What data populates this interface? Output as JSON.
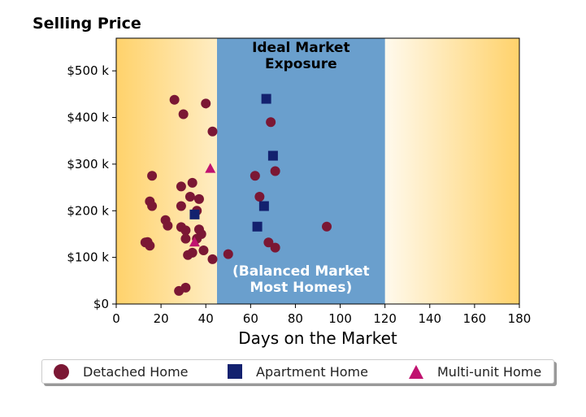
{
  "chart_data": {
    "type": "scatter",
    "title": "Selling Price",
    "xlabel": "Days on the Market",
    "ylabel": "",
    "xlim": [
      0,
      180
    ],
    "ylim": [
      0,
      570000
    ],
    "x_ticks": [
      0,
      20,
      40,
      60,
      80,
      100,
      120,
      140,
      160,
      180
    ],
    "y_ticks": [
      0,
      100000,
      200000,
      300000,
      400000,
      500000
    ],
    "y_tick_labels": [
      "$0",
      "$100 k",
      "$200 k",
      "$300 k",
      "$400 k",
      "$500 k"
    ],
    "grid": false,
    "legend_position": "bottom",
    "shaded_region": {
      "x_range": [
        45,
        120
      ],
      "color": "#6a9fcd",
      "label_top": "Ideal Market\nExposure",
      "label_bottom": "(Balanced Market\nMost Homes)"
    },
    "background_gradient": {
      "edge_color": "#ffd26b",
      "center_color": "#ffffff"
    },
    "series": [
      {
        "name": "Detached Home",
        "marker": "circle",
        "color": "#7b1734",
        "points": [
          [
            26,
            438000
          ],
          [
            30,
            407000
          ],
          [
            40,
            430000
          ],
          [
            43,
            370000
          ],
          [
            69,
            390000
          ],
          [
            16,
            275000
          ],
          [
            29,
            252000
          ],
          [
            34,
            260000
          ],
          [
            33,
            230000
          ],
          [
            37,
            225000
          ],
          [
            15,
            220000
          ],
          [
            16,
            210000
          ],
          [
            29,
            210000
          ],
          [
            36,
            200000
          ],
          [
            22,
            180000
          ],
          [
            23,
            168000
          ],
          [
            29,
            165000
          ],
          [
            31,
            158000
          ],
          [
            37,
            160000
          ],
          [
            38,
            150000
          ],
          [
            31,
            140000
          ],
          [
            36,
            140000
          ],
          [
            13,
            132000
          ],
          [
            14,
            133000
          ],
          [
            15,
            125000
          ],
          [
            39,
            115000
          ],
          [
            34,
            110000
          ],
          [
            32,
            105000
          ],
          [
            43,
            96000
          ],
          [
            50,
            107000
          ],
          [
            31,
            35000
          ],
          [
            28,
            28000
          ],
          [
            62,
            275000
          ],
          [
            71,
            285000
          ],
          [
            64,
            230000
          ],
          [
            94,
            166000
          ],
          [
            68,
            132000
          ],
          [
            71,
            121000
          ]
        ]
      },
      {
        "name": "Apartment Home",
        "marker": "square",
        "color": "#13216f",
        "points": [
          [
            67,
            440000
          ],
          [
            70,
            318000
          ],
          [
            66,
            210000
          ],
          [
            63,
            166000
          ],
          [
            35,
            192000
          ]
        ]
      },
      {
        "name": "Multi-unit Home",
        "marker": "triangle",
        "color": "#c0126f",
        "points": [
          [
            42,
            290000
          ],
          [
            35,
            132000
          ]
        ]
      }
    ]
  }
}
